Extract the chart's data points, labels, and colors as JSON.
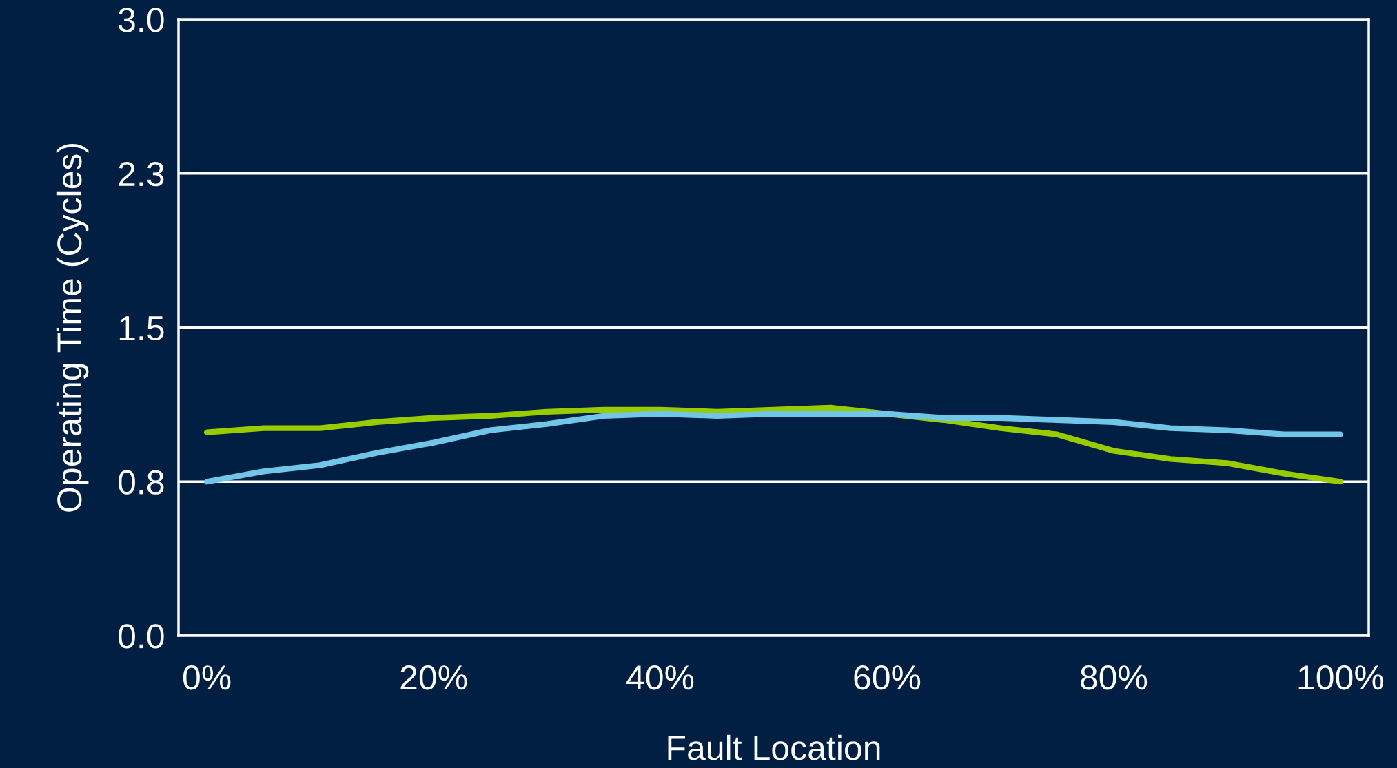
{
  "chart_data": {
    "type": "line",
    "xlabel": "Fault Location",
    "ylabel": "Operating Time (Cycles)",
    "x": [
      0,
      5,
      10,
      15,
      20,
      25,
      30,
      35,
      40,
      45,
      50,
      55,
      60,
      65,
      70,
      75,
      80,
      85,
      90,
      95,
      100
    ],
    "series": [
      {
        "color": "#99cc00",
        "values": [
          0.99,
          1.01,
          1.01,
          1.04,
          1.06,
          1.07,
          1.09,
          1.1,
          1.1,
          1.09,
          1.1,
          1.11,
          1.08,
          1.05,
          1.01,
          0.98,
          0.9,
          0.86,
          0.84,
          0.79,
          0.75
        ]
      },
      {
        "color": "#70c5e8",
        "values": [
          0.75,
          0.8,
          0.83,
          0.89,
          0.94,
          1.0,
          1.03,
          1.07,
          1.08,
          1.07,
          1.08,
          1.08,
          1.08,
          1.06,
          1.06,
          1.05,
          1.04,
          1.01,
          1.0,
          0.98,
          0.98
        ]
      }
    ],
    "xlim": [
      -2.5,
      102.5
    ],
    "xticks": [
      {
        "value": 0,
        "label": "0%"
      },
      {
        "value": 20,
        "label": "20%"
      },
      {
        "value": 40,
        "label": "40%"
      },
      {
        "value": 60,
        "label": "60%"
      },
      {
        "value": 80,
        "label": "80%"
      },
      {
        "value": 100,
        "label": "100%"
      }
    ],
    "ylim": [
      0,
      3
    ],
    "yticks": [
      {
        "value": 0,
        "label": "0.0"
      },
      {
        "value": 0.75,
        "label": "0.8"
      },
      {
        "value": 1.5,
        "label": "1.5"
      },
      {
        "value": 2.25,
        "label": "2.3"
      },
      {
        "value": 3,
        "label": "3.0"
      }
    ],
    "grid": "y",
    "marker": "none",
    "line_style": "solid",
    "legend": false
  }
}
